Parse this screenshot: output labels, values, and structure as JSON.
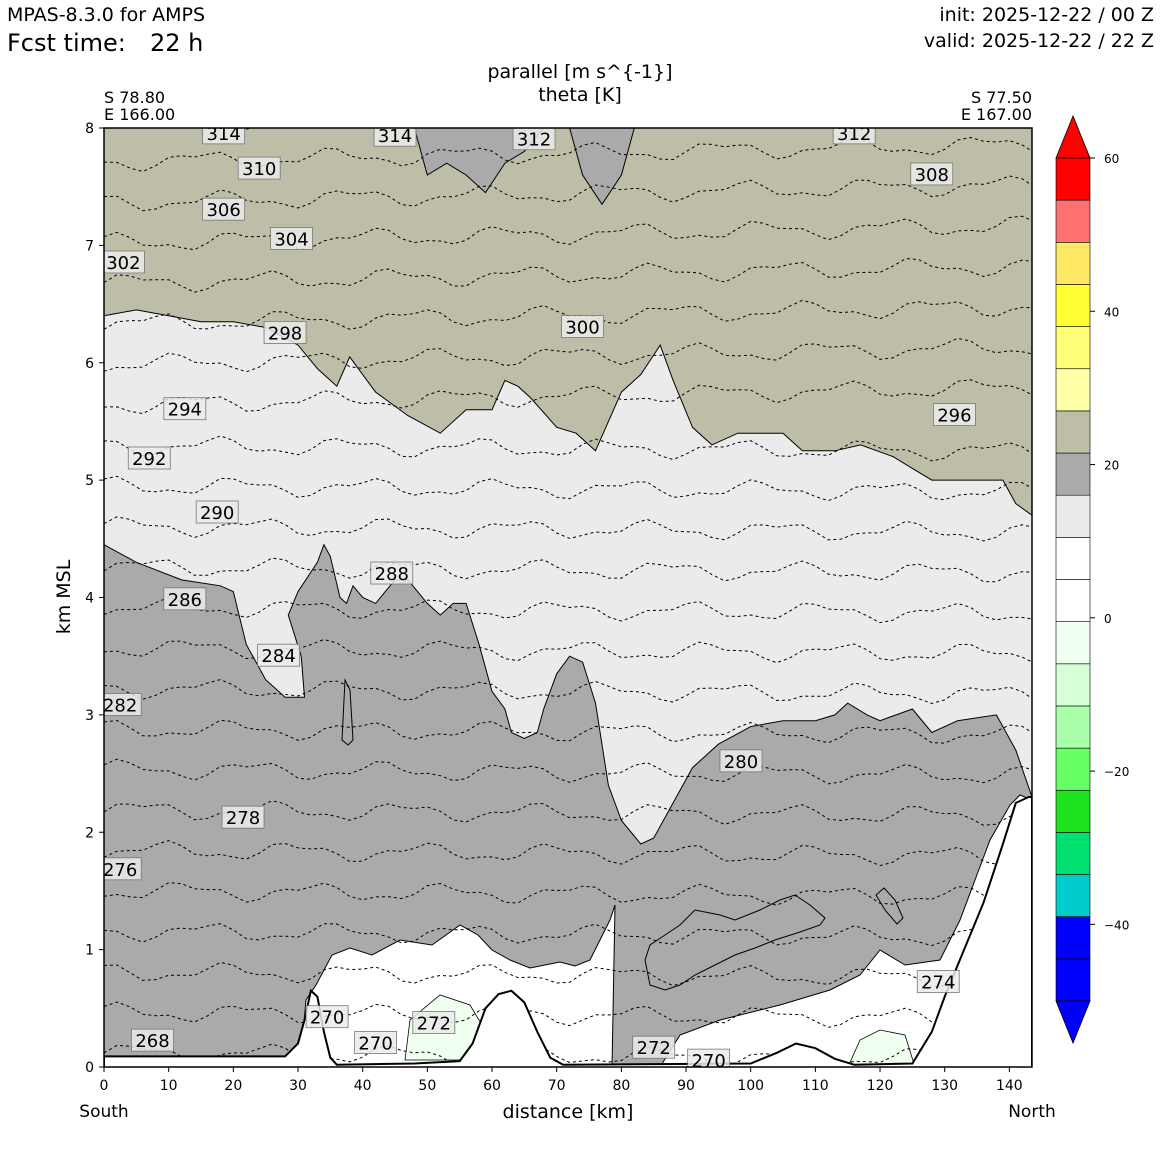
{
  "header": {
    "model": "MPAS-8.3.0 for AMPS",
    "fcst_label": "Fcst time:",
    "fcst_value": "22 h",
    "init": "init: 2025-12-22 / 00 Z",
    "valid": "valid: 2025-12-22 / 22 Z"
  },
  "chart_data": {
    "type": "cross-section",
    "title_line1": "parallel [m s^{-1}]",
    "title_line2": "theta [K]",
    "left_lat": "S 78.80",
    "left_lon": "E 166.00",
    "right_lat": "S 77.50",
    "right_lon": "E 167.00",
    "xlabel": "distance [km]",
    "ylabel": "km MSL",
    "xlim": [
      0,
      143.5
    ],
    "ylim": [
      0,
      8
    ],
    "x_ticks": [
      0,
      10,
      20,
      30,
      40,
      50,
      60,
      70,
      80,
      90,
      100,
      110,
      120,
      130,
      140
    ],
    "y_ticks": [
      0,
      1,
      2,
      3,
      4,
      5,
      6,
      7,
      8
    ],
    "x_left_end": "South",
    "x_right_end": "North",
    "colorbar": {
      "ticks": [
        "60",
        "40",
        "20",
        "0",
        "−20",
        "−40"
      ],
      "tick_values": [
        60,
        40,
        20,
        0,
        -20,
        -40
      ],
      "range": [
        -50,
        60
      ],
      "colors": [
        "#0000ff",
        "#0000ff",
        "#00cccc",
        "#00e070",
        "#1ee31e",
        "#66ff66",
        "#aaffaa",
        "#d7ffd7",
        "#f1fff1",
        "#ffffff",
        "#ffffff",
        "#ebebeb",
        "#aaaaaa",
        "#bebea8",
        "#ffffa8",
        "#ffff77",
        "#ffff33",
        "#ffe866",
        "#ff7070",
        "#ff0000"
      ]
    },
    "wind_fill": {
      "gray_boundary_lower": [
        [
          0,
          4.45
        ],
        [
          5,
          4.3
        ],
        [
          12,
          4.15
        ],
        [
          18,
          4.1
        ],
        [
          20,
          4.05
        ],
        [
          22,
          3.6
        ],
        [
          25,
          3.3
        ],
        [
          28,
          3.15
        ],
        [
          31,
          3.15
        ],
        [
          30.5,
          3.5
        ],
        [
          28.5,
          3.85
        ],
        [
          30,
          4.05
        ],
        [
          33,
          4.3
        ],
        [
          34,
          4.45
        ],
        [
          35,
          4.35
        ],
        [
          36.5,
          4.0
        ],
        [
          37.5,
          3.95
        ],
        [
          38.5,
          4.1
        ],
        [
          40,
          4.0
        ],
        [
          42,
          3.95
        ],
        [
          43.5,
          4.05
        ],
        [
          45,
          4.15
        ],
        [
          47,
          4.15
        ],
        [
          50,
          3.95
        ],
        [
          52,
          3.85
        ],
        [
          54,
          3.95
        ],
        [
          56,
          3.95
        ],
        [
          58,
          3.6
        ],
        [
          60,
          3.2
        ],
        [
          62,
          3.05
        ],
        [
          63,
          2.85
        ],
        [
          65,
          2.8
        ],
        [
          67,
          2.85
        ],
        [
          68,
          3.05
        ],
        [
          70,
          3.35
        ],
        [
          72,
          3.5
        ],
        [
          74,
          3.45
        ],
        [
          76,
          3.1
        ],
        [
          78,
          2.4
        ],
        [
          80,
          2.1
        ],
        [
          83,
          1.9
        ],
        [
          85,
          1.95
        ],
        [
          88,
          2.25
        ],
        [
          91,
          2.55
        ],
        [
          95,
          2.75
        ],
        [
          100,
          2.9
        ],
        [
          105,
          2.95
        ],
        [
          110,
          2.95
        ],
        [
          113,
          3.0
        ],
        [
          115,
          3.1
        ],
        [
          118,
          3.0
        ],
        [
          120,
          2.95
        ],
        [
          125,
          3.05
        ],
        [
          128,
          2.85
        ],
        [
          132,
          2.95
        ],
        [
          138,
          3.0
        ],
        [
          141,
          2.7
        ],
        [
          143.5,
          2.3
        ],
        [
          143.5,
          0
        ],
        [
          0,
          0
        ]
      ],
      "gray_boundary_upper": [
        [
          0,
          6.4
        ],
        [
          5,
          6.45
        ],
        [
          10,
          6.4
        ],
        [
          15,
          6.35
        ],
        [
          20,
          6.35
        ],
        [
          25,
          6.3
        ],
        [
          30,
          6.15
        ],
        [
          33,
          5.95
        ],
        [
          36,
          5.8
        ],
        [
          38,
          6.05
        ],
        [
          42,
          5.75
        ],
        [
          47,
          5.55
        ],
        [
          52,
          5.4
        ],
        [
          56,
          5.6
        ],
        [
          60,
          5.6
        ],
        [
          62,
          5.85
        ],
        [
          64,
          5.8
        ],
        [
          66,
          5.7
        ],
        [
          70,
          5.45
        ],
        [
          73,
          5.4
        ],
        [
          76,
          5.25
        ],
        [
          80,
          5.75
        ],
        [
          83,
          5.9
        ],
        [
          86,
          6.15
        ],
        [
          88,
          5.85
        ],
        [
          91,
          5.45
        ],
        [
          94,
          5.3
        ],
        [
          98,
          5.4
        ],
        [
          100,
          5.4
        ],
        [
          105,
          5.4
        ],
        [
          108,
          5.25
        ],
        [
          113,
          5.25
        ],
        [
          117,
          5.3
        ],
        [
          122,
          5.2
        ],
        [
          125,
          5.1
        ],
        [
          128,
          5.0
        ],
        [
          132,
          5.0
        ],
        [
          136,
          5.0
        ],
        [
          139,
          5.0
        ],
        [
          141,
          4.8
        ],
        [
          143.5,
          4.7
        ],
        [
          143.5,
          8
        ],
        [
          0,
          8
        ]
      ],
      "tan_pockets_top": [
        [
          48,
          8
        ],
        [
          50,
          7.6
        ],
        [
          53,
          7.7
        ],
        [
          56,
          7.6
        ],
        [
          59,
          7.45
        ],
        [
          62,
          7.7
        ],
        [
          65,
          7.8
        ],
        [
          68,
          8
        ],
        [
          72,
          8
        ],
        [
          74,
          7.6
        ],
        [
          77,
          7.35
        ],
        [
          80,
          7.6
        ],
        [
          82,
          8
        ]
      ]
    },
    "terrain": [
      [
        0,
        0.09
      ],
      [
        28,
        0.09
      ],
      [
        30,
        0.2
      ],
      [
        31,
        0.4
      ],
      [
        32,
        0.65
      ],
      [
        33,
        0.6
      ],
      [
        34,
        0.3
      ],
      [
        35,
        0.08
      ],
      [
        36,
        0.02
      ],
      [
        48,
        0.03
      ],
      [
        55,
        0.05
      ],
      [
        57,
        0.2
      ],
      [
        59,
        0.5
      ],
      [
        61,
        0.62
      ],
      [
        63,
        0.65
      ],
      [
        65,
        0.55
      ],
      [
        67,
        0.3
      ],
      [
        69,
        0.08
      ],
      [
        71,
        0.02
      ],
      [
        100,
        0.03
      ],
      [
        104,
        0.12
      ],
      [
        107,
        0.2
      ],
      [
        110,
        0.16
      ],
      [
        113,
        0.07
      ],
      [
        116,
        0.02
      ],
      [
        125,
        0.03
      ],
      [
        128,
        0.3
      ],
      [
        130,
        0.6
      ],
      [
        133,
        1.0
      ],
      [
        136,
        1.4
      ],
      [
        139,
        1.9
      ],
      [
        141,
        2.25
      ],
      [
        143,
        2.3
      ],
      [
        143.5,
        2.3
      ]
    ],
    "theta_labels": [
      {
        "value": "314",
        "x": 18.5,
        "y": 7.95
      },
      {
        "value": "314",
        "x": 45,
        "y": 7.93
      },
      {
        "value": "312",
        "x": 66.5,
        "y": 7.9
      },
      {
        "value": "312",
        "x": 116,
        "y": 7.95
      },
      {
        "value": "310",
        "x": 24,
        "y": 7.65
      },
      {
        "value": "308",
        "x": 128,
        "y": 7.6
      },
      {
        "value": "306",
        "x": 18.5,
        "y": 7.3
      },
      {
        "value": "304",
        "x": 29,
        "y": 7.05
      },
      {
        "value": "302",
        "x": 3,
        "y": 6.85
      },
      {
        "value": "300",
        "x": 74,
        "y": 6.3
      },
      {
        "value": "298",
        "x": 28,
        "y": 6.25
      },
      {
        "value": "296",
        "x": 131.5,
        "y": 5.55
      },
      {
        "value": "294",
        "x": 12.5,
        "y": 5.6
      },
      {
        "value": "292",
        "x": 7,
        "y": 5.18
      },
      {
        "value": "290",
        "x": 17.5,
        "y": 4.72
      },
      {
        "value": "288",
        "x": 44.5,
        "y": 4.2
      },
      {
        "value": "286",
        "x": 12.5,
        "y": 3.98
      },
      {
        "value": "284",
        "x": 27,
        "y": 3.5
      },
      {
        "value": "282",
        "x": 2.5,
        "y": 3.08
      },
      {
        "value": "280",
        "x": 98.5,
        "y": 2.6
      },
      {
        "value": "278",
        "x": 21.5,
        "y": 2.12
      },
      {
        "value": "276",
        "x": 2.5,
        "y": 1.68
      },
      {
        "value": "274",
        "x": 129,
        "y": 0.72
      },
      {
        "value": "272",
        "x": 51,
        "y": 0.37
      },
      {
        "value": "272",
        "x": 85,
        "y": 0.16
      },
      {
        "value": "270",
        "x": 34.5,
        "y": 0.42
      },
      {
        "value": "270",
        "x": 42,
        "y": 0.2
      },
      {
        "value": "270",
        "x": 93.5,
        "y": 0.05
      },
      {
        "value": "268",
        "x": 7.5,
        "y": 0.22
      }
    ]
  }
}
